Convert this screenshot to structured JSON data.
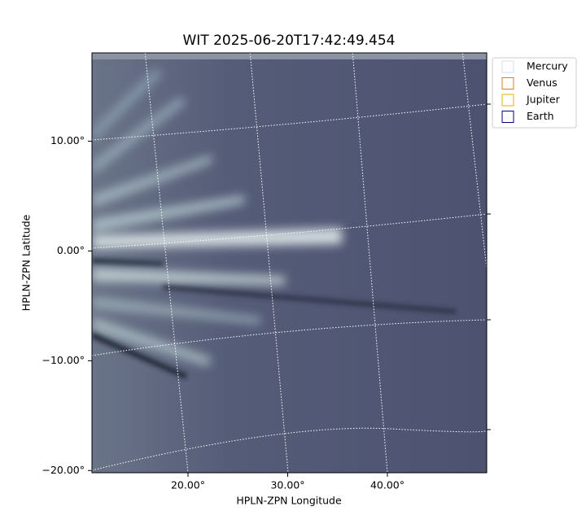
{
  "chart_data": {
    "type": "image",
    "title": "WIT 2025-06-20T17:42:49.454",
    "x_label": "HPLN-ZPN Longitude",
    "y_label": "HPLN-ZPN Latitude",
    "xlim": [
      10.37,
      49.96
    ],
    "ylim": [
      -20.2,
      18.05
    ],
    "xticks": [
      {
        "value": 20,
        "label": "20.00°"
      },
      {
        "value": 30,
        "label": "30.00°"
      },
      {
        "value": 40,
        "label": "40.00°"
      }
    ],
    "yticks": [
      {
        "value": -20,
        "label": "−20.00°"
      },
      {
        "value": -10,
        "label": "−10.00°"
      },
      {
        "value": 0,
        "label": "0.00°"
      },
      {
        "value": 10,
        "label": "10.00°"
      }
    ],
    "grid": true,
    "legend_position": "outside-upper-right",
    "legend": [
      {
        "name": "Mercury",
        "color": "#dddddd"
      },
      {
        "name": "Venus",
        "color": "#e07b20"
      },
      {
        "name": "Jupiter",
        "color": "#e0b000"
      },
      {
        "name": "Earth",
        "color": "#000080"
      }
    ]
  }
}
